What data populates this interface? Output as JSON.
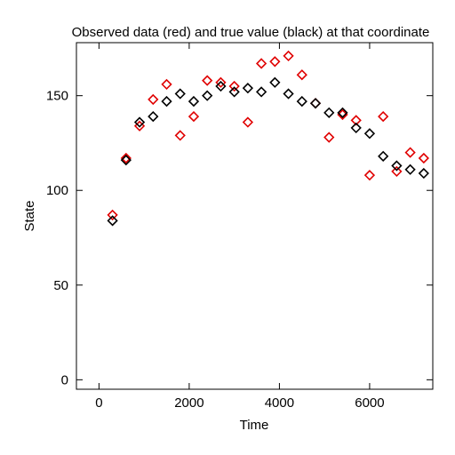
{
  "chart_data": {
    "type": "scatter",
    "title": "Observed data (red) and true value (black) at that coordinate",
    "xlabel": "Time",
    "ylabel": "State",
    "xlim": [
      -500,
      7400
    ],
    "ylim": [
      -5,
      178
    ],
    "xticks": [
      0,
      2000,
      4000,
      6000
    ],
    "yticks": [
      0,
      50,
      100,
      150
    ],
    "x_tick_labels": [
      "0",
      "2000",
      "4000",
      "6000"
    ],
    "y_tick_labels": [
      "0",
      "50",
      "100",
      "150"
    ],
    "grid": false,
    "marker": "diamond-open",
    "series": [
      {
        "color": "#e00000",
        "x": [
          300,
          600,
          900,
          1200,
          1500,
          1800,
          2100,
          2400,
          2700,
          3000,
          3300,
          3600,
          3900,
          4200,
          4500,
          4800,
          5100,
          5400,
          5700,
          6000,
          6300,
          6600,
          6900,
          7200
        ],
        "y": [
          87,
          117,
          134,
          148,
          156,
          129,
          139,
          158,
          157,
          155,
          136,
          167,
          168,
          171,
          161,
          146,
          128,
          140,
          137,
          108,
          139,
          110,
          120,
          117
        ]
      },
      {
        "color": "#000000",
        "x": [
          300,
          600,
          900,
          1200,
          1500,
          1800,
          2100,
          2400,
          2700,
          3000,
          3300,
          3600,
          3900,
          4200,
          4500,
          4800,
          5100,
          5400,
          5700,
          6000,
          6300,
          6600,
          6900,
          7200
        ],
        "y": [
          84,
          116,
          136,
          139,
          147,
          151,
          147,
          150,
          155,
          152,
          154,
          152,
          157,
          151,
          147,
          146,
          141,
          141,
          133,
          130,
          118,
          113,
          111,
          109
        ]
      }
    ]
  }
}
